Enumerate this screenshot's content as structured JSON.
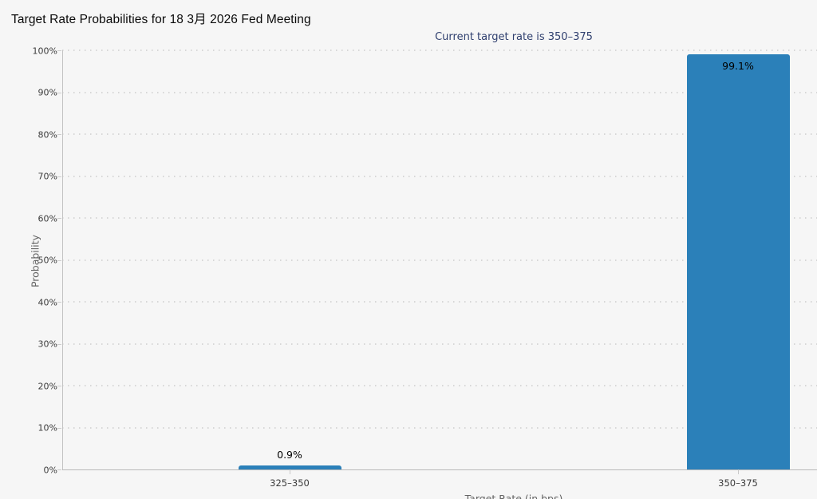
{
  "title": "Target Rate Probabilities for 18 3月 2026 Fed Meeting",
  "subtitle": "Current target rate is 350–375",
  "chart_data": {
    "type": "bar",
    "title": "Target Rate Probabilities for 18 3月 2026 Fed Meeting",
    "subtitle": "Current target rate is 350–375",
    "categories": [
      "325–350",
      "350–375"
    ],
    "values": [
      0.9,
      99.1
    ],
    "value_labels": [
      "0.9%",
      "99.1%"
    ],
    "xlabel": "Target Rate (in bps)",
    "ylabel": "Probability",
    "ylim": [
      0,
      100
    ],
    "ytick_step": 10,
    "ytick_labels": [
      "0%",
      "10%",
      "20%",
      "30%",
      "40%",
      "50%",
      "60%",
      "70%",
      "80%",
      "90%",
      "100%"
    ],
    "grid": "horizontal-dotted",
    "legend": "none",
    "bar_color": "#2b80b9"
  },
  "colors": {
    "background": "#f6f6f6",
    "bar": "#2b80b9",
    "gridline": "#d7d7d7",
    "axis_line": "#c3c3c3",
    "tick_text": "#3c3c3c",
    "axis_title_text": "#636363",
    "subtitle_text": "#30406f",
    "title_text": "#0a0a0a"
  }
}
